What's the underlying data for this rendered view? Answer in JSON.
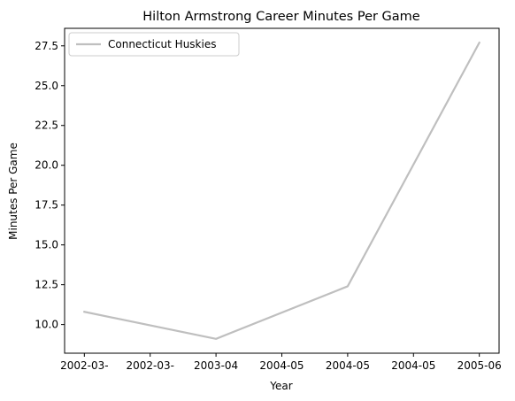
{
  "chart_data": {
    "type": "line",
    "title": "Hilton Armstrong Career Minutes Per Game",
    "xlabel": "Year",
    "ylabel": "Minutes Per Game",
    "x_tick_labels": [
      "2002-03-",
      "2002-03-",
      "2003-04",
      "2004-05",
      "2004-05",
      "2004-05",
      "2005-06"
    ],
    "x_tick_positions": [
      0,
      0.5,
      1,
      1.5,
      2,
      2.5,
      3
    ],
    "y_ticks": [
      "10.0",
      "12.5",
      "15.0",
      "17.5",
      "20.0",
      "22.5",
      "25.0",
      "27.5"
    ],
    "y_tick_values": [
      10.0,
      12.5,
      15.0,
      17.5,
      20.0,
      22.5,
      25.0,
      27.5
    ],
    "xlim": [
      -0.15,
      3.15
    ],
    "ylim": [
      8.2,
      28.6
    ],
    "series": [
      {
        "name": "Connecticut Huskies",
        "color": "#bfbfbf",
        "x": [
          0,
          1,
          2,
          3
        ],
        "values": [
          10.8,
          9.1,
          12.4,
          27.7
        ]
      }
    ],
    "legend": "top-left",
    "grid": false
  }
}
